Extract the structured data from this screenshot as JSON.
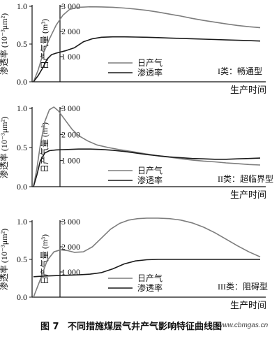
{
  "figure": {
    "caption_label": "图 7",
    "caption_text": "不同措施煤层气井产气影响特征曲线图",
    "watermark": "www.cbmgas.cn"
  },
  "chart_data": [
    {
      "type": "line",
      "panel_label": "I类：畅通型",
      "xlabel": "生产时间",
      "ylabel_left": "渗透率 (10⁻³μm²)",
      "ylabel_right": "日产气量 (m³)",
      "left_axis": {
        "ticks": [
          "0.0",
          "0.5",
          "1.0"
        ],
        "ylim": [
          0,
          1.0
        ]
      },
      "right_axis": {
        "ticks": [
          "1 000",
          "2 000",
          "3 000"
        ],
        "ylim": [
          0,
          3000
        ]
      },
      "legend": {
        "gas_label": "日产气",
        "perm_label": "渗透率",
        "placement": "center"
      },
      "xlim": [
        0,
        1
      ],
      "series": [
        {
          "name": "日产气",
          "axis": "right",
          "color": "#7d7d7d",
          "x": [
            0,
            0.02,
            0.04,
            0.07,
            0.1,
            0.13,
            0.16,
            0.2,
            0.25,
            0.3,
            0.35,
            0.4,
            0.45,
            0.5,
            0.55,
            0.6,
            0.65,
            0.7,
            0.75,
            0.8,
            0.85,
            0.9,
            0.95,
            1.0
          ],
          "y": [
            0,
            450,
            1050,
            1700,
            2250,
            2650,
            2880,
            2960,
            2980,
            2975,
            2960,
            2930,
            2890,
            2840,
            2770,
            2690,
            2610,
            2520,
            2440,
            2370,
            2300,
            2240,
            2190,
            2150
          ]
        },
        {
          "name": "渗透率",
          "axis": "left",
          "color": "#1a1a1a",
          "x": [
            0,
            0.02,
            0.04,
            0.06,
            0.08,
            0.1,
            0.14,
            0.18,
            0.22,
            0.26,
            0.3,
            0.35,
            0.4,
            0.45,
            0.5,
            0.55,
            0.6,
            0.65,
            0.7,
            0.75,
            0.8,
            0.85,
            0.9,
            0.95,
            1.0
          ],
          "y": [
            0,
            0.08,
            0.18,
            0.3,
            0.36,
            0.38,
            0.41,
            0.45,
            0.53,
            0.57,
            0.59,
            0.595,
            0.595,
            0.593,
            0.59,
            0.585,
            0.58,
            0.575,
            0.57,
            0.565,
            0.56,
            0.555,
            0.55,
            0.545,
            0.54
          ]
        }
      ]
    },
    {
      "type": "line",
      "panel_label": "II类：超临界型",
      "xlabel": "生产时间",
      "ylabel_left": "渗透率 (10⁻³μm²)",
      "ylabel_right": "日产气量 (m³)",
      "left_axis": {
        "ticks": [
          "0.0",
          "0.5",
          "1.0"
        ],
        "ylim": [
          0,
          1.0
        ]
      },
      "right_axis": {
        "ticks": [
          "1 000",
          "2 000",
          "3 000"
        ],
        "ylim": [
          0,
          3000
        ]
      },
      "legend": {
        "gas_label": "日产气",
        "perm_label": "渗透率",
        "placement": "lower-center"
      },
      "xlim": [
        0,
        1
      ],
      "series": [
        {
          "name": "日产气",
          "axis": "right",
          "color": "#7d7d7d",
          "x": [
            0,
            0.015,
            0.03,
            0.05,
            0.07,
            0.09,
            0.11,
            0.14,
            0.17,
            0.2,
            0.24,
            0.28,
            0.33,
            0.38,
            0.43,
            0.5,
            0.55,
            0.6,
            0.65,
            0.7,
            0.75,
            0.8,
            0.85,
            0.9,
            0.95,
            1.0
          ],
          "y": [
            0,
            700,
            1600,
            2500,
            2950,
            3050,
            2900,
            2550,
            2200,
            1950,
            1750,
            1600,
            1500,
            1420,
            1350,
            1250,
            1180,
            1130,
            1070,
            1020,
            980,
            950,
            910,
            880,
            850,
            830
          ]
        },
        {
          "name": "渗透率",
          "axis": "left",
          "color": "#1a1a1a",
          "x": [
            0,
            0.015,
            0.03,
            0.05,
            0.07,
            0.1,
            0.15,
            0.2,
            0.25,
            0.3,
            0.35,
            0.4,
            0.45,
            0.5,
            0.55,
            0.6,
            0.65,
            0.7,
            0.75,
            0.8,
            0.85,
            0.9,
            0.95,
            1.0
          ],
          "y": [
            0,
            0.15,
            0.33,
            0.43,
            0.46,
            0.47,
            0.475,
            0.48,
            0.48,
            0.475,
            0.465,
            0.45,
            0.43,
            0.41,
            0.395,
            0.38,
            0.37,
            0.36,
            0.355,
            0.35,
            0.35,
            0.355,
            0.36,
            0.365
          ]
        }
      ]
    },
    {
      "type": "line",
      "panel_label": "III类：阻碍型",
      "xlabel": "生产时间",
      "ylabel_left": "渗透率 (10⁻³μm²)",
      "ylabel_right": "日产气量 (m³)",
      "left_axis": {
        "ticks": [
          "0.0",
          "0.5",
          "1.0"
        ],
        "ylim": [
          0,
          1.0
        ]
      },
      "right_axis": {
        "ticks": [
          "1 000",
          "2 000",
          "3 000"
        ],
        "ylim": [
          0,
          3000
        ]
      },
      "legend": {
        "gas_label": "日产气",
        "perm_label": "渗透率",
        "placement": "lower-center"
      },
      "xlim": [
        0,
        1
      ],
      "series": [
        {
          "name": "日产气",
          "axis": "right",
          "color": "#7d7d7d",
          "x": [
            0,
            0.03,
            0.06,
            0.09,
            0.12,
            0.15,
            0.18,
            0.22,
            0.26,
            0.3,
            0.34,
            0.38,
            0.42,
            0.46,
            0.5,
            0.55,
            0.6,
            0.65,
            0.7,
            0.75,
            0.8,
            0.85,
            0.9,
            0.95,
            1.0
          ],
          "y": [
            0,
            700,
            1450,
            1800,
            1880,
            1850,
            1780,
            1800,
            2000,
            2350,
            2700,
            2930,
            3060,
            3120,
            3140,
            3140,
            3120,
            3060,
            2950,
            2780,
            2560,
            2300,
            2040,
            1800,
            1600
          ]
        },
        {
          "name": "渗透率",
          "axis": "left",
          "color": "#1a1a1a",
          "x": [
            0,
            0.05,
            0.1,
            0.15,
            0.2,
            0.25,
            0.3,
            0.35,
            0.4,
            0.45,
            0.5,
            0.55,
            0.6,
            0.65,
            0.7,
            0.75,
            0.8,
            0.85,
            0.9,
            0.95,
            1.0
          ],
          "y": [
            0.27,
            0.28,
            0.285,
            0.29,
            0.295,
            0.305,
            0.325,
            0.375,
            0.44,
            0.48,
            0.495,
            0.5,
            0.5,
            0.5,
            0.5,
            0.5,
            0.5,
            0.5,
            0.5,
            0.5,
            0.5
          ]
        }
      ]
    }
  ]
}
